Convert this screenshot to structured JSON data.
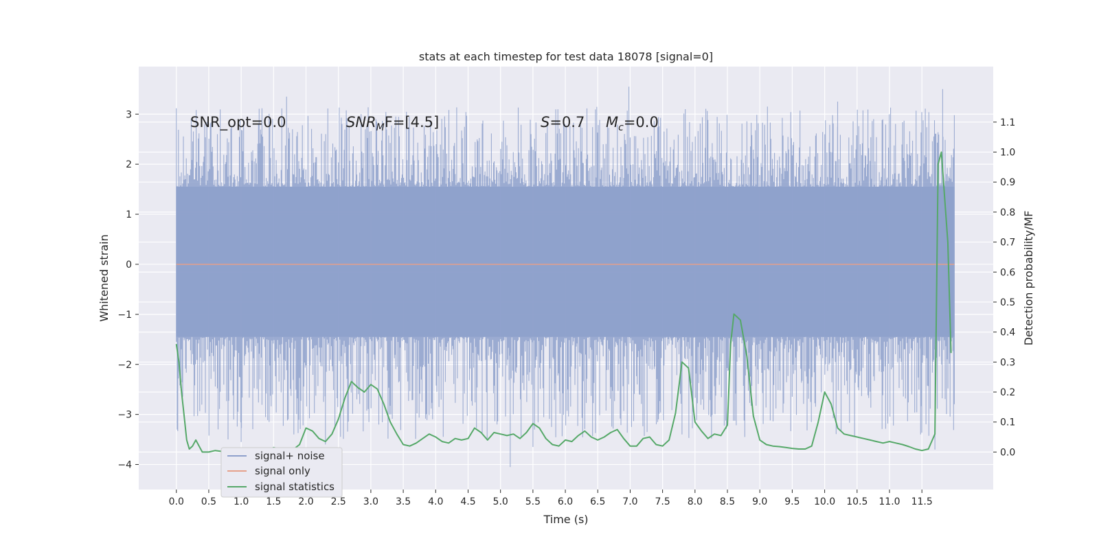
{
  "chart_data": {
    "type": "line",
    "title": "stats at each timestep for test data 18078 [signal=0]",
    "xlabel": "Time (s)",
    "ylabel": "Whitened strain",
    "y2label": "Detection probability/MF",
    "xlim": [
      -0.58,
      12.6
    ],
    "ylim": [
      -4.5,
      3.95
    ],
    "y2lim": [
      -0.125,
      1.285
    ],
    "x_ticks": [
      0.0,
      0.5,
      1.0,
      1.5,
      2.0,
      2.5,
      3.0,
      3.5,
      4.0,
      4.5,
      5.0,
      5.5,
      6.0,
      6.5,
      7.0,
      7.5,
      8.0,
      8.5,
      9.0,
      9.5,
      10.0,
      10.5,
      11.0,
      11.5
    ],
    "x_tick_labels": [
      "0.0",
      "0.5",
      "1.0",
      "1.5",
      "2.0",
      "2.5",
      "3.0",
      "3.5",
      "4.0",
      "4.5",
      "5.0",
      "5.5",
      "6.0",
      "6.5",
      "7.0",
      "7.5",
      "8.0",
      "8.5",
      "9.0",
      "9.5",
      "10.0",
      "10.5",
      "11.0",
      "11.5"
    ],
    "y_ticks": [
      -4,
      -3,
      -2,
      -1,
      0,
      1,
      2,
      3
    ],
    "y_tick_labels": [
      "−4",
      "−3",
      "−2",
      "−1",
      "0",
      "1",
      "2",
      "3"
    ],
    "y2_ticks": [
      0.0,
      0.1,
      0.2,
      0.3,
      0.4,
      0.5,
      0.6,
      0.7,
      0.8,
      0.9,
      1.0,
      1.1
    ],
    "y2_tick_labels": [
      "0.0",
      "0.1",
      "0.2",
      "0.3",
      "0.4",
      "0.5",
      "0.6",
      "0.7",
      "0.8",
      "0.9",
      "1.0",
      "1.1"
    ],
    "grid": true,
    "legend_position": "lower-left",
    "annotations": {
      "snr_opt": "SNR_opt=0.0",
      "snr_mf_main": "SNR",
      "snr_mf_sub": "M",
      "snr_mf_rest": "F=[4.5]",
      "s_main": "S",
      "s_rest": "=0.7",
      "mc_main": "M",
      "mc_sub": "c",
      "mc_rest": "=0.0"
    },
    "series": [
      {
        "name": "signal+ noise",
        "axis": "left",
        "color": "#8da0cb",
        "t_start": 0.0,
        "t_end": 12.0,
        "core_band": [
          -1.45,
          1.55
        ],
        "envelope_max": 3.55,
        "envelope_min": -4.1,
        "spikes": [
          {
            "x": 1.0,
            "y": -3.55
          },
          {
            "x": 1.7,
            "y": 3.35
          },
          {
            "x": 2.3,
            "y": -3.6
          },
          {
            "x": 5.15,
            "y": -4.05
          },
          {
            "x": 5.5,
            "y": -3.65
          },
          {
            "x": 6.98,
            "y": 3.55
          },
          {
            "x": 7.8,
            "y": -3.4
          },
          {
            "x": 7.85,
            "y": 3.1
          },
          {
            "x": 11.48,
            "y": -3.4
          },
          {
            "x": 11.7,
            "y": -3.7
          },
          {
            "x": 11.82,
            "y": 3.5
          },
          {
            "x": 10.2,
            "y": 3.25
          }
        ]
      },
      {
        "name": "signal only",
        "axis": "left",
        "color": "#e5a08a",
        "x": [
          0.0,
          12.0
        ],
        "y": [
          0.0,
          0.0
        ]
      },
      {
        "name": "signal statistics",
        "axis": "right",
        "color": "#55a868",
        "x": [
          0.0,
          0.04,
          0.08,
          0.12,
          0.16,
          0.2,
          0.25,
          0.3,
          0.35,
          0.4,
          0.5,
          0.6,
          0.7,
          0.8,
          0.9,
          1.0,
          1.1,
          1.2,
          1.3,
          1.4,
          1.5,
          1.6,
          1.7,
          1.8,
          1.9,
          2.0,
          2.1,
          2.2,
          2.3,
          2.4,
          2.5,
          2.6,
          2.7,
          2.8,
          2.9,
          3.0,
          3.1,
          3.2,
          3.3,
          3.4,
          3.5,
          3.6,
          3.7,
          3.8,
          3.9,
          4.0,
          4.1,
          4.2,
          4.3,
          4.4,
          4.5,
          4.6,
          4.7,
          4.8,
          4.9,
          5.0,
          5.1,
          5.2,
          5.3,
          5.4,
          5.5,
          5.6,
          5.7,
          5.8,
          5.9,
          6.0,
          6.1,
          6.2,
          6.3,
          6.4,
          6.5,
          6.6,
          6.7,
          6.8,
          6.9,
          7.0,
          7.1,
          7.2,
          7.3,
          7.4,
          7.5,
          7.6,
          7.7,
          7.8,
          7.9,
          8.0,
          8.1,
          8.2,
          8.3,
          8.4,
          8.5,
          8.55,
          8.6,
          8.7,
          8.8,
          8.9,
          9.0,
          9.1,
          9.2,
          9.3,
          9.4,
          9.5,
          9.6,
          9.7,
          9.8,
          9.9,
          10.0,
          10.1,
          10.2,
          10.3,
          10.4,
          10.5,
          10.6,
          10.7,
          10.8,
          10.9,
          11.0,
          11.1,
          11.2,
          11.3,
          11.4,
          11.5,
          11.6,
          11.7,
          11.75,
          11.8,
          11.9,
          11.95
        ],
        "y": [
          0.36,
          0.3,
          0.2,
          0.12,
          0.04,
          0.01,
          0.02,
          0.04,
          0.02,
          0.0,
          0.0,
          0.005,
          0.002,
          0.0,
          0.003,
          0.0,
          0.0,
          0.004,
          0.002,
          0.003,
          0.015,
          0.01,
          0.005,
          0.008,
          0.025,
          0.08,
          0.07,
          0.045,
          0.035,
          0.06,
          0.11,
          0.18,
          0.235,
          0.215,
          0.2,
          0.225,
          0.21,
          0.16,
          0.1,
          0.06,
          0.025,
          0.02,
          0.03,
          0.045,
          0.06,
          0.05,
          0.035,
          0.03,
          0.045,
          0.04,
          0.045,
          0.08,
          0.065,
          0.04,
          0.065,
          0.06,
          0.055,
          0.06,
          0.045,
          0.065,
          0.095,
          0.08,
          0.045,
          0.025,
          0.02,
          0.04,
          0.035,
          0.055,
          0.07,
          0.05,
          0.04,
          0.05,
          0.065,
          0.075,
          0.045,
          0.02,
          0.02,
          0.045,
          0.05,
          0.025,
          0.02,
          0.04,
          0.13,
          0.3,
          0.28,
          0.1,
          0.07,
          0.045,
          0.06,
          0.055,
          0.09,
          0.36,
          0.46,
          0.44,
          0.32,
          0.12,
          0.04,
          0.025,
          0.02,
          0.018,
          0.015,
          0.012,
          0.01,
          0.01,
          0.02,
          0.1,
          0.2,
          0.16,
          0.08,
          0.06,
          0.055,
          0.05,
          0.045,
          0.04,
          0.035,
          0.03,
          0.035,
          0.03,
          0.025,
          0.018,
          0.01,
          0.005,
          0.01,
          0.06,
          0.96,
          1.0,
          0.7,
          0.33
        ]
      }
    ]
  }
}
